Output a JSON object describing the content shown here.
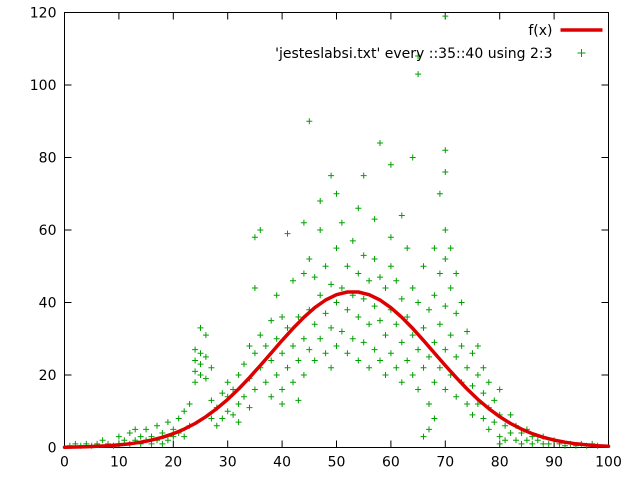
{
  "chart_data": {
    "type": "line+scatter",
    "title": "",
    "xlabel": "",
    "ylabel": "",
    "xlim": [
      0,
      100
    ],
    "ylim": [
      0,
      120
    ],
    "xticks": [
      0,
      10,
      20,
      30,
      40,
      50,
      60,
      70,
      80,
      90,
      100
    ],
    "yticks": [
      0,
      20,
      40,
      60,
      80,
      100,
      120
    ],
    "grid": false,
    "background_color": "#ffffff",
    "axis_color": "#000000",
    "legend_position": "top-right-inside",
    "series": [
      {
        "name": "f(x)",
        "type": "line",
        "color": "#dd0000",
        "line_width": 3.5,
        "points": [
          [
            0,
            0.08
          ],
          [
            2,
            0.13
          ],
          [
            4,
            0.21
          ],
          [
            6,
            0.32
          ],
          [
            8,
            0.48
          ],
          [
            10,
            0.71
          ],
          [
            12,
            1.03
          ],
          [
            14,
            1.46
          ],
          [
            16,
            2.05
          ],
          [
            18,
            2.82
          ],
          [
            20,
            3.82
          ],
          [
            22,
            5.08
          ],
          [
            24,
            6.63
          ],
          [
            26,
            8.51
          ],
          [
            28,
            10.72
          ],
          [
            30,
            13.27
          ],
          [
            32,
            16.14
          ],
          [
            34,
            19.28
          ],
          [
            36,
            22.62
          ],
          [
            38,
            26.08
          ],
          [
            40,
            29.54
          ],
          [
            42,
            32.86
          ],
          [
            44,
            35.92
          ],
          [
            46,
            38.56
          ],
          [
            48,
            40.68
          ],
          [
            50,
            42.15
          ],
          [
            52,
            42.9
          ],
          [
            54,
            42.9
          ],
          [
            56,
            42.15
          ],
          [
            58,
            40.68
          ],
          [
            60,
            38.56
          ],
          [
            62,
            35.92
          ],
          [
            64,
            32.86
          ],
          [
            66,
            29.54
          ],
          [
            68,
            26.08
          ],
          [
            70,
            22.62
          ],
          [
            72,
            19.28
          ],
          [
            74,
            16.14
          ],
          [
            76,
            13.27
          ],
          [
            78,
            10.72
          ],
          [
            80,
            8.51
          ],
          [
            82,
            6.63
          ],
          [
            84,
            5.08
          ],
          [
            86,
            3.82
          ],
          [
            88,
            2.82
          ],
          [
            90,
            2.05
          ],
          [
            92,
            1.46
          ],
          [
            94,
            1.03
          ],
          [
            96,
            0.71
          ],
          [
            98,
            0.48
          ],
          [
            100,
            0.32
          ]
        ]
      },
      {
        "name": "'jesteslabsi.txt' every ::35::40 using 2:3",
        "type": "scatter",
        "marker": "plus",
        "color": "#00a000",
        "points": [
          [
            1,
            0.5
          ],
          [
            2,
            1
          ],
          [
            3,
            0.5
          ],
          [
            4,
            1
          ],
          [
            5,
            0.5
          ],
          [
            6,
            1
          ],
          [
            7,
            2
          ],
          [
            8,
            1
          ],
          [
            9,
            0.5
          ],
          [
            10,
            1
          ],
          [
            10,
            3
          ],
          [
            11,
            2
          ],
          [
            12,
            1
          ],
          [
            12,
            4
          ],
          [
            13,
            2
          ],
          [
            13,
            5
          ],
          [
            14,
            1
          ],
          [
            14,
            3
          ],
          [
            15,
            2
          ],
          [
            15,
            5
          ],
          [
            16,
            1
          ],
          [
            16,
            3
          ],
          [
            17,
            2
          ],
          [
            17,
            6
          ],
          [
            18,
            1
          ],
          [
            18,
            4
          ],
          [
            19,
            2
          ],
          [
            19,
            7
          ],
          [
            20,
            3
          ],
          [
            20,
            5
          ],
          [
            21,
            4
          ],
          [
            21,
            8
          ],
          [
            22,
            3
          ],
          [
            22,
            10
          ],
          [
            23,
            6
          ],
          [
            23,
            12
          ],
          [
            24,
            18
          ],
          [
            24,
            21
          ],
          [
            24,
            24
          ],
          [
            24,
            27
          ],
          [
            25,
            20
          ],
          [
            25,
            23
          ],
          [
            25,
            26
          ],
          [
            25,
            33
          ],
          [
            26,
            19
          ],
          [
            26,
            25
          ],
          [
            26,
            31
          ],
          [
            27,
            8
          ],
          [
            27,
            13
          ],
          [
            27,
            22
          ],
          [
            28,
            6
          ],
          [
            28,
            11
          ],
          [
            29,
            8
          ],
          [
            29,
            15
          ],
          [
            30,
            10
          ],
          [
            30,
            14
          ],
          [
            30,
            18
          ],
          [
            31,
            9
          ],
          [
            31,
            16
          ],
          [
            32,
            7
          ],
          [
            32,
            12
          ],
          [
            32,
            20
          ],
          [
            33,
            14
          ],
          [
            33,
            23
          ],
          [
            34,
            11
          ],
          [
            34,
            19
          ],
          [
            34,
            28
          ],
          [
            35,
            16
          ],
          [
            35,
            26
          ],
          [
            35,
            44
          ],
          [
            35,
            58
          ],
          [
            36,
            22
          ],
          [
            36,
            31
          ],
          [
            36,
            60
          ],
          [
            37,
            18
          ],
          [
            37,
            28
          ],
          [
            38,
            14
          ],
          [
            38,
            24
          ],
          [
            38,
            35
          ],
          [
            39,
            20
          ],
          [
            39,
            30
          ],
          [
            39,
            42
          ],
          [
            40,
            12
          ],
          [
            40,
            16
          ],
          [
            40,
            26
          ],
          [
            40,
            36
          ],
          [
            41,
            22
          ],
          [
            41,
            33
          ],
          [
            41,
            59
          ],
          [
            42,
            18
          ],
          [
            42,
            28
          ],
          [
            42,
            46
          ],
          [
            43,
            13
          ],
          [
            43,
            24
          ],
          [
            43,
            36
          ],
          [
            44,
            20
          ],
          [
            44,
            30
          ],
          [
            44,
            48
          ],
          [
            44,
            62
          ],
          [
            45,
            27
          ],
          [
            45,
            38
          ],
          [
            45,
            52
          ],
          [
            45,
            90
          ],
          [
            46,
            24
          ],
          [
            46,
            34
          ],
          [
            46,
            47
          ],
          [
            47,
            30
          ],
          [
            47,
            42
          ],
          [
            47,
            60
          ],
          [
            47,
            68
          ],
          [
            48,
            26
          ],
          [
            48,
            37
          ],
          [
            48,
            50
          ],
          [
            49,
            22
          ],
          [
            49,
            33
          ],
          [
            49,
            45
          ],
          [
            49,
            75
          ],
          [
            50,
            28
          ],
          [
            50,
            40
          ],
          [
            50,
            55
          ],
          [
            50,
            70
          ],
          [
            51,
            32
          ],
          [
            51,
            44
          ],
          [
            51,
            62
          ],
          [
            52,
            26
          ],
          [
            52,
            38
          ],
          [
            52,
            50
          ],
          [
            53,
            30
          ],
          [
            53,
            42
          ],
          [
            53,
            57
          ],
          [
            54,
            24
          ],
          [
            54,
            36
          ],
          [
            54,
            48
          ],
          [
            54,
            66
          ],
          [
            55,
            29
          ],
          [
            55,
            41
          ],
          [
            55,
            53
          ],
          [
            55,
            75
          ],
          [
            56,
            22
          ],
          [
            56,
            34
          ],
          [
            56,
            46
          ],
          [
            57,
            27
          ],
          [
            57,
            39
          ],
          [
            57,
            52
          ],
          [
            57,
            63
          ],
          [
            58,
            24
          ],
          [
            58,
            35
          ],
          [
            58,
            47
          ],
          [
            58,
            84
          ],
          [
            59,
            20
          ],
          [
            59,
            31
          ],
          [
            59,
            44
          ],
          [
            60,
            26
          ],
          [
            60,
            38
          ],
          [
            60,
            50
          ],
          [
            60,
            58
          ],
          [
            60,
            78
          ],
          [
            61,
            22
          ],
          [
            61,
            34
          ],
          [
            61,
            46
          ],
          [
            62,
            18
          ],
          [
            62,
            29
          ],
          [
            62,
            41
          ],
          [
            62,
            64
          ],
          [
            63,
            24
          ],
          [
            63,
            36
          ],
          [
            63,
            55
          ],
          [
            64,
            20
          ],
          [
            64,
            31
          ],
          [
            64,
            44
          ],
          [
            64,
            80
          ],
          [
            65,
            16
          ],
          [
            65,
            27
          ],
          [
            65,
            40
          ],
          [
            65,
            103
          ],
          [
            65,
            108
          ],
          [
            66,
            3
          ],
          [
            66,
            22
          ],
          [
            66,
            33
          ],
          [
            66,
            50
          ],
          [
            67,
            5
          ],
          [
            67,
            12
          ],
          [
            67,
            25
          ],
          [
            67,
            38
          ],
          [
            68,
            8
          ],
          [
            68,
            18
          ],
          [
            68,
            29
          ],
          [
            68,
            42
          ],
          [
            68,
            55
          ],
          [
            69,
            22
          ],
          [
            69,
            34
          ],
          [
            69,
            48
          ],
          [
            69,
            70
          ],
          [
            70,
            16
          ],
          [
            70,
            27
          ],
          [
            70,
            39
          ],
          [
            70,
            52
          ],
          [
            70,
            60
          ],
          [
            70,
            76
          ],
          [
            70,
            82
          ],
          [
            70,
            119
          ],
          [
            71,
            20
          ],
          [
            71,
            31
          ],
          [
            71,
            44
          ],
          [
            71,
            55
          ],
          [
            72,
            14
          ],
          [
            72,
            25
          ],
          [
            72,
            37
          ],
          [
            72,
            48
          ],
          [
            73,
            18
          ],
          [
            73,
            28
          ],
          [
            73,
            40
          ],
          [
            74,
            12
          ],
          [
            74,
            22
          ],
          [
            74,
            32
          ],
          [
            75,
            9
          ],
          [
            75,
            17
          ],
          [
            75,
            26
          ],
          [
            76,
            12
          ],
          [
            76,
            20
          ],
          [
            76,
            28
          ],
          [
            77,
            8
          ],
          [
            77,
            15
          ],
          [
            77,
            22
          ],
          [
            78,
            5
          ],
          [
            78,
            11
          ],
          [
            78,
            18
          ],
          [
            79,
            7
          ],
          [
            79,
            13
          ],
          [
            80,
            1
          ],
          [
            80,
            3
          ],
          [
            80,
            9
          ],
          [
            80,
            16
          ],
          [
            81,
            2
          ],
          [
            81,
            6
          ],
          [
            82,
            4
          ],
          [
            82,
            9
          ],
          [
            83,
            2
          ],
          [
            83,
            6
          ],
          [
            84,
            1
          ],
          [
            84,
            4
          ],
          [
            85,
            2
          ],
          [
            85,
            5
          ],
          [
            86,
            1
          ],
          [
            86,
            3
          ],
          [
            87,
            2
          ],
          [
            88,
            1
          ],
          [
            88,
            3
          ],
          [
            89,
            1
          ],
          [
            90,
            2
          ],
          [
            91,
            1
          ],
          [
            92,
            0.5
          ],
          [
            93,
            1
          ],
          [
            94,
            0.5
          ],
          [
            95,
            1
          ],
          [
            96,
            0.5
          ],
          [
            97,
            1
          ],
          [
            98,
            0.5
          ]
        ]
      }
    ]
  }
}
